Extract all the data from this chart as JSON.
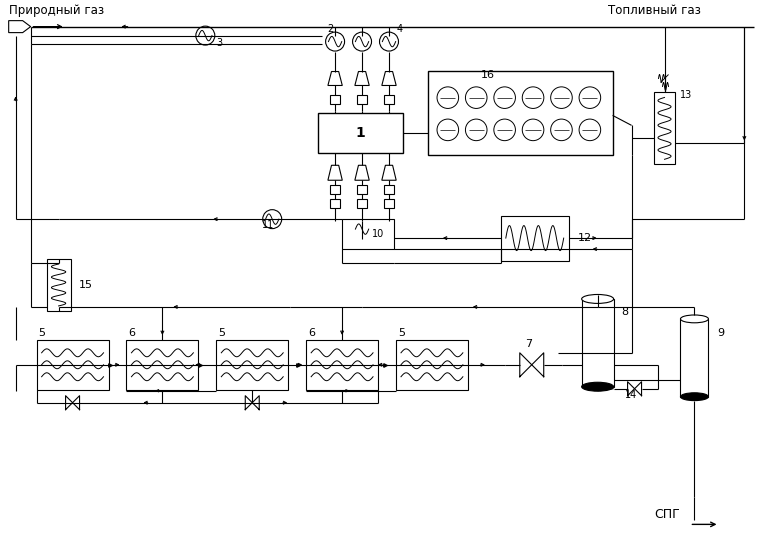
{
  "text_prirodny": "Природный газ",
  "text_toplivny": "Топливный газ",
  "text_spg": "СПГ",
  "bg_color": "#ffffff",
  "figsize": [
    7.8,
    5.53
  ],
  "dpi": 100
}
